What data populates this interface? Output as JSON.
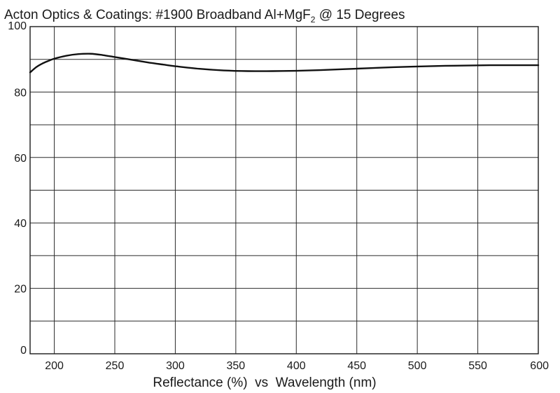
{
  "chart_data": {
    "type": "line",
    "title_main": "Acton Optics & Coatings: #1900 Broadband Al+MgF",
    "title_sub": "2",
    "title_tail": " @ 15 Degrees",
    "xlabel": "Reflectance (%)  vs  Wavelength (nm)",
    "ylabel": "",
    "xlim": [
      180,
      600
    ],
    "ylim": [
      0,
      100
    ],
    "x_ticks": [
      200,
      250,
      300,
      350,
      400,
      450,
      500,
      550,
      600
    ],
    "x_tick_labels": [
      "200",
      "250",
      "300",
      "350",
      "400",
      "450",
      "500",
      "550",
      "600"
    ],
    "y_ticks": [
      0,
      20,
      40,
      60,
      80,
      100
    ],
    "y_tick_labels": [
      "0",
      "20",
      "40",
      "60",
      "80",
      "100"
    ],
    "x_gridlines": [
      200,
      250,
      300,
      350,
      400,
      450,
      500,
      550,
      600
    ],
    "y_gridlines": [
      0,
      10,
      20,
      30,
      40,
      50,
      60,
      70,
      80,
      90,
      100
    ],
    "grid": true,
    "series": [
      {
        "x": [
          180,
          185,
          190,
          195,
          200,
          210,
          220,
          230,
          240,
          250,
          260,
          270,
          280,
          290,
          300,
          320,
          340,
          360,
          380,
          400,
          420,
          440,
          460,
          480,
          500,
          520,
          540,
          560,
          580,
          600
        ],
        "y": [
          86.0,
          87.6,
          88.7,
          89.5,
          90.2,
          91.1,
          91.6,
          91.7,
          91.3,
          90.7,
          90.1,
          89.5,
          88.9,
          88.4,
          87.9,
          87.1,
          86.6,
          86.4,
          86.4,
          86.5,
          86.7,
          87.0,
          87.3,
          87.6,
          87.8,
          88.0,
          88.1,
          88.2,
          88.2,
          88.2
        ]
      }
    ]
  }
}
